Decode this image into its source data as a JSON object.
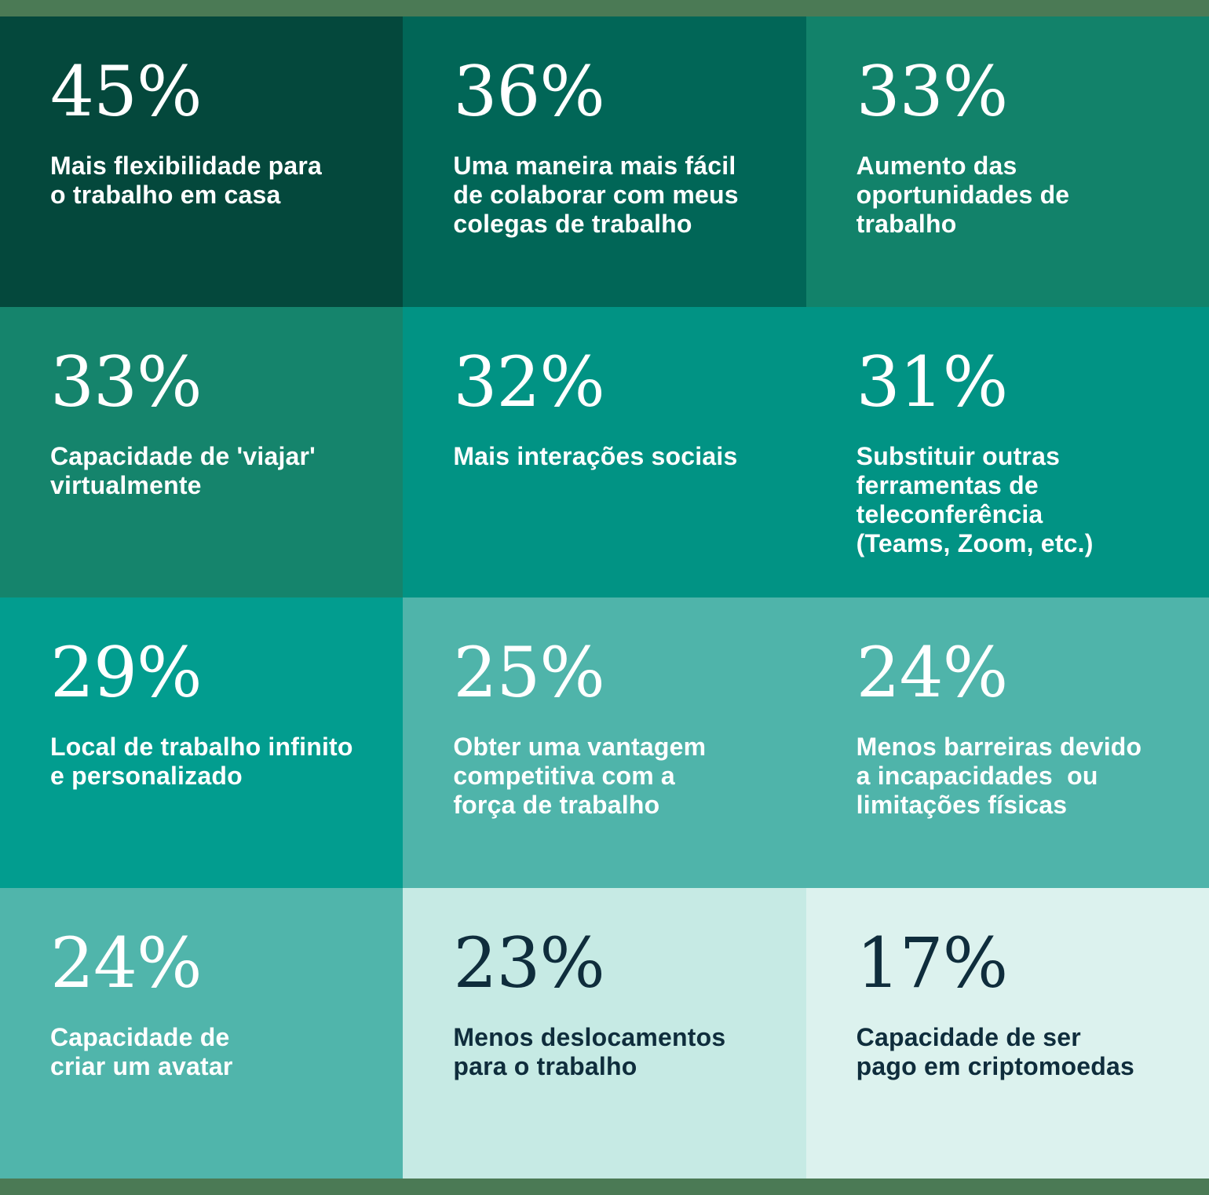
{
  "palette": {
    "frame_bar": "#4b7a55",
    "white_text": "#ffffff",
    "dark_text": "#0f2d3c"
  },
  "chart_data": {
    "type": "table",
    "title": "",
    "unit": "%",
    "layout": "4x3 grid, color gradient dark-to-light by rank",
    "items": [
      {
        "value": 45,
        "label": "Mais flexibilidade para o trabalho em casa"
      },
      {
        "value": 36,
        "label": "Uma maneira mais fácil de colaborar com meus colegas de trabalho"
      },
      {
        "value": 33,
        "label": "Aumento das oportunidades de trabalho"
      },
      {
        "value": 33,
        "label": "Capacidade de 'viajar' virtualmente"
      },
      {
        "value": 32,
        "label": "Mais interações sociais"
      },
      {
        "value": 31,
        "label": "Substituir outras ferramentas de teleconferência (Teams, Zoom, etc.)"
      },
      {
        "value": 29,
        "label": "Local de trabalho infinito e personalizado"
      },
      {
        "value": 25,
        "label": "Obter uma vantagem competitiva com a força de trabalho"
      },
      {
        "value": 24,
        "label": "Menos barreiras devido a incapacidades ou limitações físicas"
      },
      {
        "value": 24,
        "label": "Capacidade de criar um avatar"
      },
      {
        "value": 23,
        "label": "Menos deslocamentos para o trabalho"
      },
      {
        "value": 17,
        "label": "Capacidade de ser pago em criptomoedas"
      }
    ]
  },
  "grid": {
    "cells": [
      {
        "percent_label": "45%",
        "label": "Mais flexibilidade para\no trabalho em casa",
        "bg": "#04483c",
        "fg": "#ffffff"
      },
      {
        "percent_label": "36%",
        "label": "Uma maneira mais fácil\nde colaborar com meus\ncolegas de trabalho",
        "bg": "#016657",
        "fg": "#ffffff"
      },
      {
        "percent_label": "33%",
        "label": "Aumento das\noportunidades de\ntrabalho",
        "bg": "#12826a",
        "fg": "#ffffff"
      },
      {
        "percent_label": "33%",
        "label": "Capacidade de 'viajar'\nvirtualmente",
        "bg": "#15846c",
        "fg": "#ffffff"
      },
      {
        "percent_label": "32%",
        "label": "Mais interações sociais",
        "bg": "#019384",
        "fg": "#ffffff"
      },
      {
        "percent_label": "31%",
        "label": "Substituir outras\nferramentas de\nteleconferência\n(Teams, Zoom, etc.)",
        "bg": "#019384",
        "fg": "#ffffff"
      },
      {
        "percent_label": "29%",
        "label": "Local de trabalho infinito\ne personalizado",
        "bg": "#029d8f",
        "fg": "#ffffff"
      },
      {
        "percent_label": "25%",
        "label": "Obter uma vantagem\ncompetitiva com a\nforça de trabalho",
        "bg": "#4fb4aa",
        "fg": "#ffffff"
      },
      {
        "percent_label": "24%",
        "label": "Menos barreiras devido\na incapacidades  ou\nlimitações físicas",
        "bg": "#4fb4aa",
        "fg": "#ffffff"
      },
      {
        "percent_label": "24%",
        "label": "Capacidade de\ncriar um avatar",
        "bg": "#50b5ab",
        "fg": "#ffffff"
      },
      {
        "percent_label": "23%",
        "label": "Menos deslocamentos\npara o trabalho",
        "bg": "#c6eae4",
        "fg": "#0f2d3c"
      },
      {
        "percent_label": "17%",
        "label": "Capacidade de ser\npago em criptomoedas",
        "bg": "#dcf2ee",
        "fg": "#0f2d3c"
      }
    ]
  }
}
